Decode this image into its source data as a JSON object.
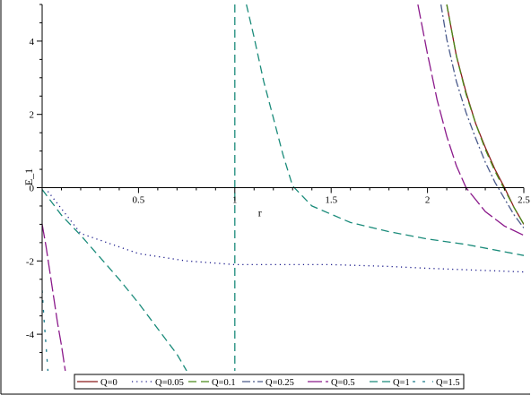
{
  "chart_data": {
    "type": "line",
    "title": "",
    "xlabel": "r",
    "ylabel": "E_1",
    "xlim": [
      0,
      2.5
    ],
    "ylim": [
      -5,
      5
    ],
    "grid": false,
    "legend_position": "bottom",
    "x_ticks": [
      {
        "value": 0.5,
        "label": "0.5"
      },
      {
        "value": 1,
        "label": "1"
      },
      {
        "value": 1.5,
        "label": "1.5"
      },
      {
        "value": 2,
        "label": "2"
      },
      {
        "value": 2.5,
        "label": "2.5"
      }
    ],
    "y_ticks": [
      {
        "value": -4,
        "label": "-4"
      },
      {
        "value": -2,
        "label": "-2"
      },
      {
        "value": 0,
        "label": "0"
      },
      {
        "value": 2,
        "label": "2"
      },
      {
        "value": 4,
        "label": "4"
      }
    ],
    "series": [
      {
        "name": "Q=0",
        "color": "#8b1a1a",
        "style": "solid",
        "points": [
          [
            2.1,
            5
          ],
          [
            2.15,
            3.6
          ],
          [
            2.2,
            2.6
          ],
          [
            2.25,
            1.75
          ],
          [
            2.3,
            1.1
          ],
          [
            2.35,
            0.5
          ],
          [
            2.4,
            0
          ],
          [
            2.45,
            -0.55
          ],
          [
            2.5,
            -1.0
          ]
        ]
      },
      {
        "name": "Q=0.05",
        "color": "#1a1a8b",
        "style": "dotted",
        "points": [
          [
            0.03,
            -0.1
          ],
          [
            0.2,
            -1.25
          ],
          [
            0.5,
            -1.8
          ],
          [
            0.75,
            -2.0
          ],
          [
            1,
            -2.1
          ],
          [
            1.25,
            -2.1
          ],
          [
            1.5,
            -2.1
          ],
          [
            1.8,
            -2.15
          ],
          [
            2,
            -2.2
          ],
          [
            2.5,
            -2.3
          ]
        ]
      },
      {
        "name": "Q=0.1",
        "color": "#4a8b1a",
        "style": "dash",
        "points": [
          [
            2.1,
            5
          ],
          [
            2.15,
            3.6
          ],
          [
            2.2,
            2.55
          ],
          [
            2.25,
            1.75
          ],
          [
            2.3,
            1.05
          ],
          [
            2.35,
            0.45
          ],
          [
            2.4,
            -0.05
          ],
          [
            2.45,
            -0.55
          ],
          [
            2.5,
            -1.0
          ]
        ]
      },
      {
        "name": "Q=0.25",
        "color": "#4a5a8b",
        "style": "dashdot",
        "points": [
          [
            2.07,
            5
          ],
          [
            2.1,
            4.05
          ],
          [
            2.15,
            2.9
          ],
          [
            2.2,
            2.05
          ],
          [
            2.25,
            1.35
          ],
          [
            2.3,
            0.7
          ],
          [
            2.35,
            0.15
          ],
          [
            2.4,
            -0.3
          ],
          [
            2.45,
            -0.75
          ],
          [
            2.5,
            -1.1
          ]
        ]
      },
      {
        "name": "Q=0.5",
        "color": "#8b1a8b",
        "style": "longdash",
        "points": [
          [
            1.95,
            5
          ],
          [
            2.0,
            3.65
          ],
          [
            2.05,
            2.4
          ],
          [
            2.1,
            1.4
          ],
          [
            2.15,
            0.6
          ],
          [
            2.2,
            0
          ],
          [
            2.3,
            -0.65
          ],
          [
            2.4,
            -1.05
          ],
          [
            2.5,
            -1.3
          ]
        ]
      },
      {
        "name": "Q=1",
        "color": "#1a8b7a",
        "style": "dash",
        "points": [
          [
            0,
            -0.05
          ],
          [
            0.1,
            -0.75
          ],
          [
            0.2,
            -1.3
          ],
          [
            0.3,
            -1.9
          ],
          [
            0.4,
            -2.5
          ],
          [
            0.5,
            -3.15
          ],
          [
            0.6,
            -3.85
          ],
          [
            0.7,
            -4.55
          ],
          [
            0.75,
            -5
          ]
        ],
        "branch2": [
          [
            1.06,
            5
          ],
          [
            1.1,
            4.1
          ],
          [
            1.15,
            2.9
          ],
          [
            1.2,
            1.9
          ],
          [
            1.25,
            0.9
          ],
          [
            1.3,
            0.05
          ],
          [
            1.4,
            -0.5
          ],
          [
            1.6,
            -0.95
          ],
          [
            1.8,
            -1.2
          ],
          [
            2,
            -1.4
          ],
          [
            2.2,
            -1.55
          ],
          [
            2.5,
            -1.85
          ]
        ],
        "asymptote": 1
      },
      {
        "name": "Q=1.5",
        "color": "#1a7a8b",
        "style": "dashdot-sparse",
        "points": [
          [
            0,
            -2.8
          ],
          [
            0.01,
            -3.6
          ],
          [
            0.02,
            -4.3
          ],
          [
            0.03,
            -5
          ]
        ]
      }
    ],
    "extra_curves": [
      {
        "color": "#8b1a8b",
        "style": "longdash",
        "points": [
          [
            0,
            -1.0
          ],
          [
            0.02,
            -1.6
          ],
          [
            0.04,
            -2.3
          ],
          [
            0.06,
            -3.0
          ],
          [
            0.08,
            -3.7
          ],
          [
            0.1,
            -4.3
          ],
          [
            0.12,
            -5
          ]
        ]
      }
    ]
  }
}
